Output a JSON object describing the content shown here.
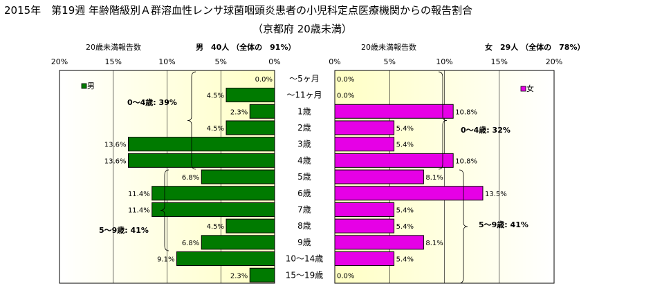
{
  "title_line1": "2015年　第19週 年齢階級別Ａ群溶血性レンサ球菌咽頭炎患者の小児科定点医療機関からの報告割合",
  "title_line2": "（京都府 20歳未満）",
  "male_panel": {
    "header_left": "20歳未満報告数",
    "header_right": "男　40人 （全体の　91%）",
    "legend": "男",
    "color": "#007A00",
    "bracket_labels": [
      "0～4歳: 39%",
      "5～9歳: 41%"
    ]
  },
  "female_panel": {
    "header_left": "20歳未満報告数",
    "header_right": "女　29人 （全体の　78%）",
    "legend": "女",
    "color": "#E600E6",
    "bracket_labels": [
      "0～4歳: 32%",
      "5～9歳: 41%"
    ]
  },
  "colors": {
    "background_gradient": [
      "#FFFFFF",
      "#FFFFC4"
    ],
    "border": "#000000"
  },
  "chart_data": {
    "type": "bar",
    "orientation": "horizontal-population-pyramid",
    "title": "2015年　第19週 年齢階級別Ａ群溶血性レンサ球菌咽頭炎患者の小児科定点医療機関からの報告割合（京都府 20歳未満）",
    "categories": [
      "～5ヶ月",
      "～11ヶ月",
      "1歳",
      "2歳",
      "3歳",
      "4歳",
      "5歳",
      "6歳",
      "7歳",
      "8歳",
      "9歳",
      "10～14歳",
      "15～19歳"
    ],
    "x_ticks": [
      "20%",
      "15%",
      "10%",
      "5%",
      "0%"
    ],
    "xlim": [
      0,
      20
    ],
    "grid": true,
    "series": [
      {
        "name": "男",
        "values": [
          0.0,
          4.5,
          2.3,
          4.5,
          13.6,
          13.6,
          6.8,
          11.4,
          11.4,
          4.5,
          6.8,
          9.1,
          2.3
        ],
        "labels": [
          "0.0%",
          "4.5%",
          "2.3%",
          "4.5%",
          "13.6%",
          "13.6%",
          "6.8%",
          "11.4%",
          "11.4%",
          "4.5%",
          "6.8%",
          "9.1%",
          "2.3%"
        ]
      },
      {
        "name": "女",
        "values": [
          0.0,
          0.0,
          10.8,
          5.4,
          5.4,
          10.8,
          8.1,
          13.5,
          5.4,
          5.4,
          8.1,
          5.4,
          0.0
        ],
        "labels": [
          "0.0%",
          "0.0%",
          "10.8%",
          "5.4%",
          "5.4%",
          "10.8%",
          "8.1%",
          "13.5%",
          "5.4%",
          "5.4%",
          "8.1%",
          "5.4%",
          "0.0%"
        ]
      }
    ]
  }
}
